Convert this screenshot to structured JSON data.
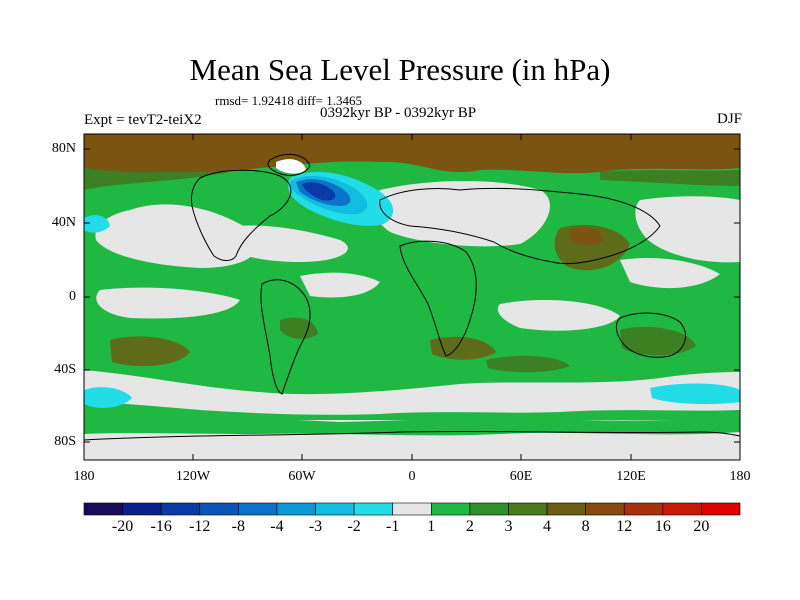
{
  "title": "Mean Sea Level Pressure (in hPa)",
  "stats_line": "rmsd= 1.92418 diff= 1.3465",
  "experiment": "Expt = tevT2-teiX2",
  "period": "0392kyr BP - 0392kyr BP",
  "season": "DJF",
  "lat_ticks": [
    "80N",
    "40N",
    "0",
    "40S",
    "80S"
  ],
  "lon_ticks": [
    "180",
    "120W",
    "60W",
    "0",
    "60E",
    "120E",
    "180"
  ],
  "colorbar": {
    "labels": [
      "-20",
      "-16",
      "-12",
      "-8",
      "-4",
      "-3",
      "-2",
      "-1",
      "1",
      "2",
      "3",
      "4",
      "8",
      "12",
      "16",
      "20"
    ],
    "colors": [
      "#1a0a5a",
      "#0b1f8c",
      "#0a3aa6",
      "#0a55b8",
      "#0b73c9",
      "#0c97d6",
      "#10bde0",
      "#22dde8",
      "#e6e6e6",
      "#1fb843",
      "#2f8f2a",
      "#4a7a1d",
      "#6a5e14",
      "#8a4a0e",
      "#a8300a",
      "#c81808",
      "#e00000"
    ]
  },
  "field_colors": {
    "background_neutral": "#e6e6e6",
    "green": "#1fb843",
    "dark_green": "#3d7f23",
    "olive": "#5e6b18",
    "brown": "#7a5410",
    "cyan": "#22dde8",
    "light_blue": "#10bde0",
    "mid_blue": "#0b73c9",
    "deep_blue": "#0a3aa6"
  }
}
